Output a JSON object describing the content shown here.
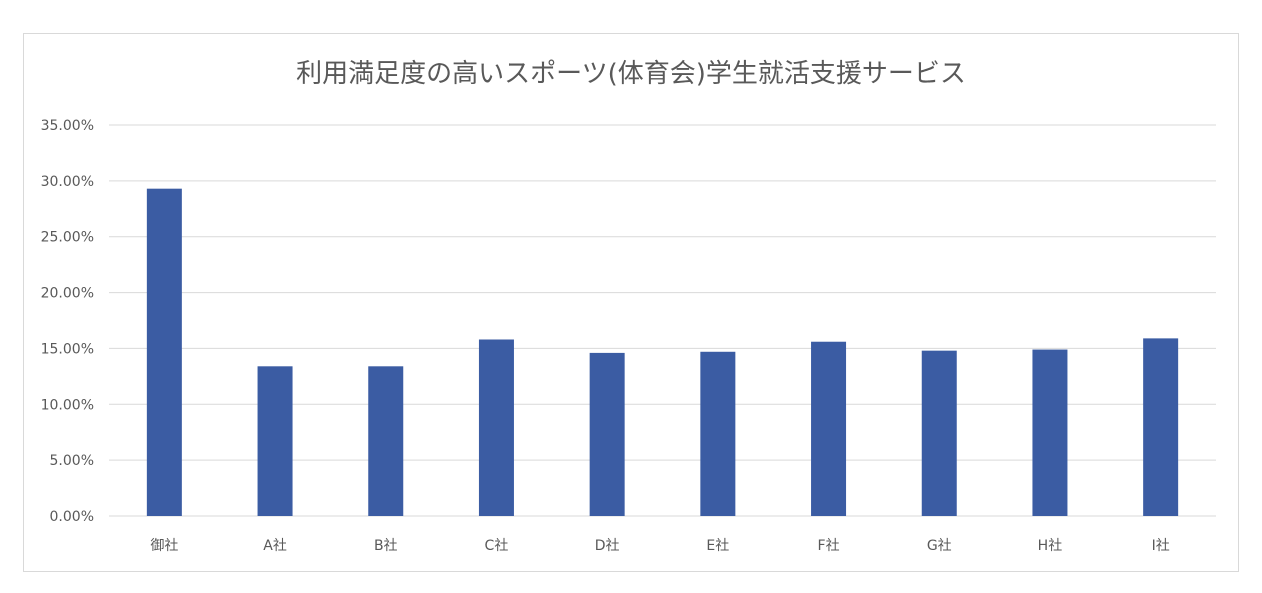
{
  "chart_data": {
    "type": "bar",
    "title": "利用満足度の高いスポーツ(体育会)学生就活支援サービス",
    "categories": [
      "御社",
      "A社",
      "B社",
      "C社",
      "D社",
      "E社",
      "F社",
      "G社",
      "H社",
      "I社"
    ],
    "values": [
      0.293,
      0.134,
      0.134,
      0.158,
      0.146,
      0.147,
      0.156,
      0.148,
      0.149,
      0.159
    ],
    "ylim": [
      0,
      0.35
    ],
    "yticks": [
      0,
      0.05,
      0.1,
      0.15,
      0.2,
      0.25,
      0.3,
      0.35
    ],
    "ytick_labels": [
      "0.00%",
      "5.00%",
      "10.00%",
      "15.00%",
      "20.00%",
      "25.00%",
      "30.00%",
      "35.00%"
    ],
    "grid": true,
    "legend": "none",
    "bar_color": "#3b5ca3",
    "grid_color": "#d9d9d9"
  }
}
